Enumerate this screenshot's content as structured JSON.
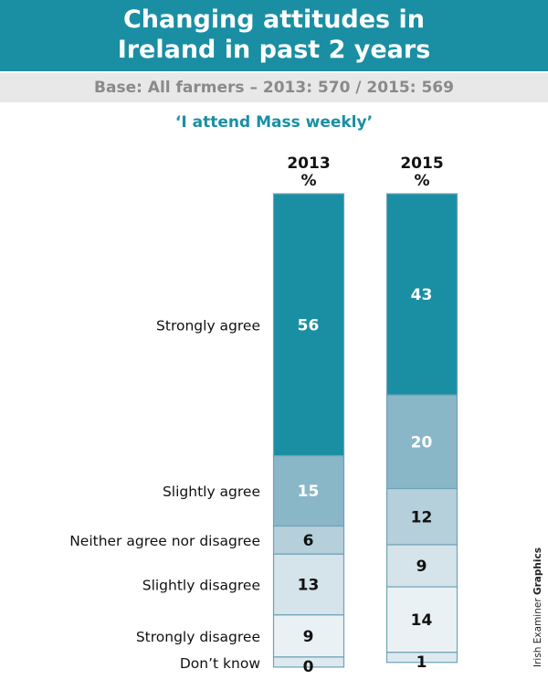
{
  "title_lines": [
    "Changing attitudes in",
    "Ireland in past 2 years"
  ],
  "subtitle": "Base: All farmers – 2013: 570 / 2015: 569",
  "credit": {
    "normal": "Irish Examiner ",
    "bold": "Graphics"
  },
  "chart_data": {
    "type": "bar",
    "stacked": true,
    "title": "‘I attend Mass weekly’",
    "unit_label": "%",
    "categories": [
      "Strongly agree",
      "Slightly agree",
      "Neither agree nor disagree",
      "Slightly disagree",
      "Strongly disagree",
      "Don’t know"
    ],
    "colors": [
      "#1a8fa3",
      "#8ab7c8",
      "#b5cfdb",
      "#d5e3ea",
      "#eaf1f4",
      "#dde9ef"
    ],
    "label_colors": [
      "#ffffff",
      "#ffffff",
      "#111111",
      "#111111",
      "#111111",
      "#111111"
    ],
    "series": [
      {
        "name": "2013",
        "values": [
          56,
          15,
          6,
          13,
          9,
          0
        ]
      },
      {
        "name": "2015",
        "values": [
          43,
          20,
          12,
          9,
          14,
          1
        ]
      }
    ]
  }
}
